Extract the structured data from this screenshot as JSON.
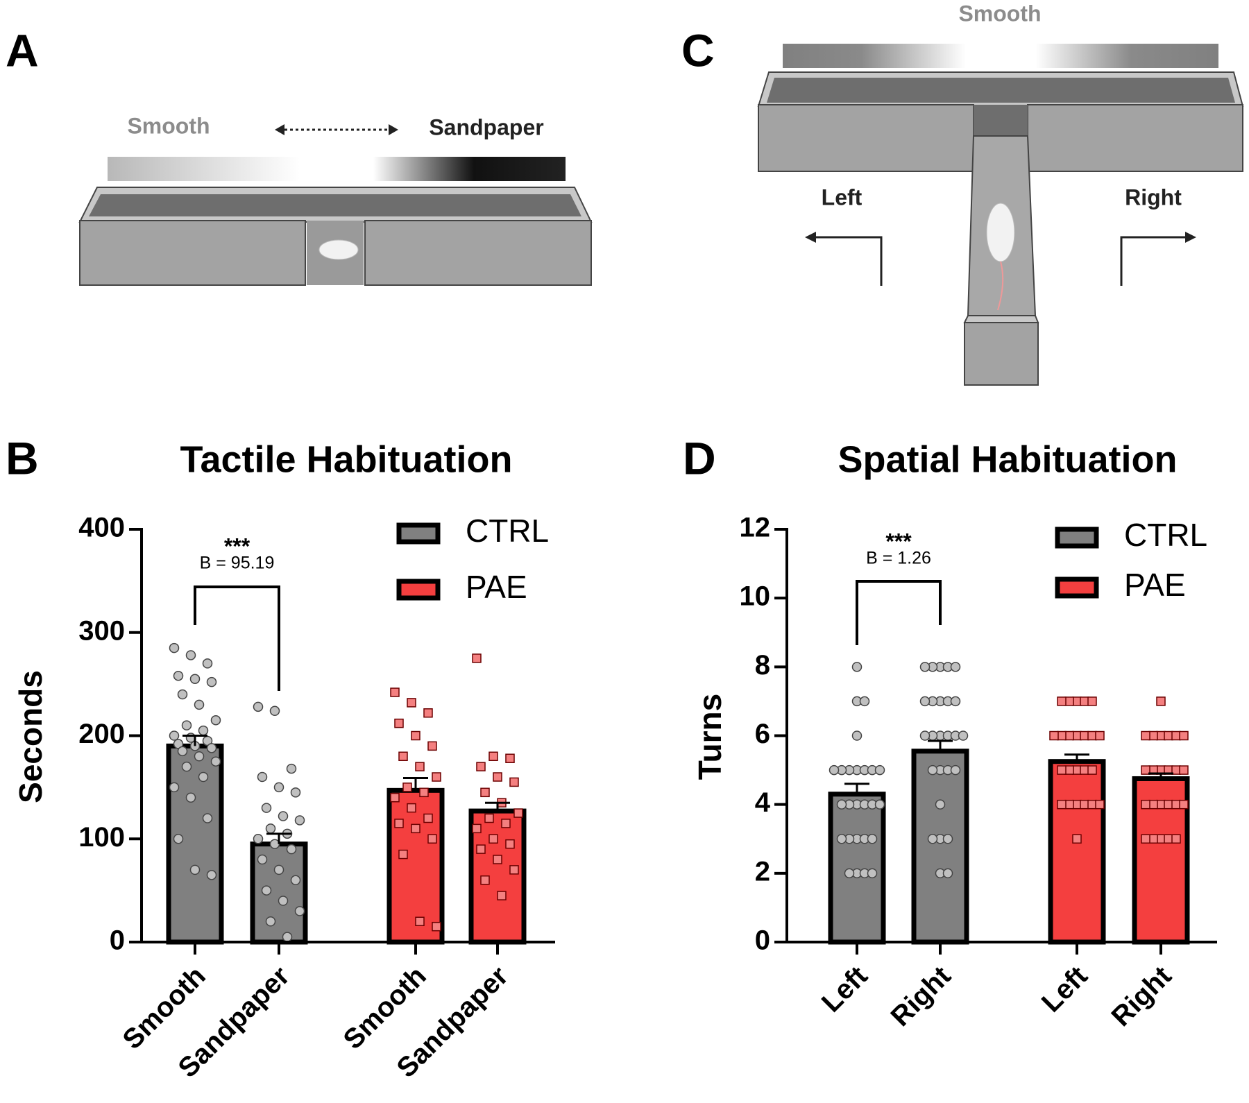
{
  "panel_labels": [
    "A",
    "B",
    "C",
    "D"
  ],
  "diagram_a": {
    "labels": [
      "Smooth",
      "Sandpaper"
    ]
  },
  "diagram_c": {
    "labels": [
      "Smooth",
      "Left",
      "Right"
    ]
  },
  "chart_data": [
    {
      "type": "bar",
      "title": "Tactile Habituation",
      "ylabel": "Seconds",
      "categories": [
        "Smooth",
        "Sandpaper",
        "Smooth",
        "Sandpaper"
      ],
      "ylim": [
        0,
        400
      ],
      "yticks": [
        0,
        100,
        200,
        300,
        400
      ],
      "annotation": [
        "***",
        "B = 95.19"
      ],
      "series": [
        {
          "name": "CTRL",
          "color": "#808080",
          "point_color": "#c0c0c0",
          "marker": "circle",
          "values": [
            190,
            95,
            null,
            null
          ],
          "errors": [
            10,
            10,
            null,
            null
          ],
          "points": [
            [
              285,
              278,
              270,
              258,
              255,
              252,
              240,
              230,
              215,
              210,
              205,
              200,
              198,
              195,
              192,
              190,
              188,
              185,
              180,
              175,
              170,
              160,
              150,
              140,
              120,
              100,
              70,
              65
            ],
            [
              228,
              224,
              168,
              160,
              150,
              145,
              130,
              122,
              118,
              110,
              105,
              100,
              95,
              90,
              80,
              70,
              60,
              50,
              40,
              30,
              20,
              5
            ],
            null,
            null
          ]
        },
        {
          "name": "PAE",
          "color": "#f43f3f",
          "point_color": "#f48080",
          "marker": "square",
          "values": [
            null,
            null,
            147,
            127
          ],
          "errors": [
            null,
            null,
            12,
            8
          ],
          "points": [
            null,
            null,
            [
              242,
              232,
              222,
              212,
              200,
              190,
              180,
              170,
              160,
              150,
              145,
              140,
              130,
              120,
              115,
              110,
              100,
              85,
              20,
              15
            ],
            [
              275,
              180,
              178,
              170,
              160,
              155,
              145,
              135,
              125,
              120,
              115,
              110,
              100,
              95,
              90,
              80,
              70,
              60,
              45
            ]
          ]
        }
      ]
    },
    {
      "type": "bar",
      "title": "Spatial Habituation",
      "ylabel": "Turns",
      "categories": [
        "Left",
        "Right",
        "Left",
        "Right"
      ],
      "ylim": [
        0,
        12
      ],
      "yticks": [
        0,
        2,
        4,
        6,
        8,
        10,
        12
      ],
      "annotation": [
        "***",
        "B = 1.26"
      ],
      "series": [
        {
          "name": "CTRL",
          "color": "#808080",
          "point_color": "#c0c0c0",
          "marker": "circle",
          "values": [
            4.3,
            5.55,
            null,
            null
          ],
          "errors": [
            0.3,
            0.3,
            null,
            null
          ],
          "points": [
            [
              8,
              7,
              7,
              6,
              5,
              5,
              5,
              5,
              5,
              5,
              5,
              4,
              4,
              4,
              4,
              4,
              4,
              3,
              3,
              3,
              3,
              3,
              2,
              2,
              2,
              2
            ],
            [
              8,
              8,
              8,
              8,
              8,
              7,
              7,
              7,
              7,
              7,
              6,
              6,
              6,
              6,
              6,
              6,
              5,
              5,
              5,
              5,
              4,
              3,
              3,
              3,
              2,
              2
            ],
            null,
            null
          ]
        },
        {
          "name": "PAE",
          "color": "#f43f3f",
          "point_color": "#f48080",
          "marker": "square",
          "values": [
            null,
            null,
            5.25,
            4.75
          ],
          "errors": [
            null,
            null,
            0.2,
            0.15
          ],
          "points": [
            null,
            null,
            [
              7,
              7,
              7,
              7,
              7,
              6,
              6,
              6,
              6,
              6,
              6,
              6,
              5,
              5,
              5,
              5,
              5,
              4,
              4,
              4,
              4,
              4,
              4,
              3
            ],
            [
              7,
              6,
              6,
              6,
              6,
              6,
              6,
              5,
              5,
              5,
              5,
              5,
              5,
              4,
              4,
              4,
              4,
              4,
              4,
              3,
              3,
              3,
              3,
              3
            ]
          ]
        }
      ]
    }
  ]
}
